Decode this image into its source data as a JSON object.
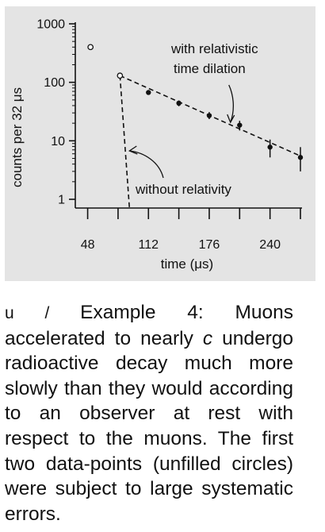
{
  "chart_data": {
    "type": "scatter",
    "xlabel": "time (μs)",
    "ylabel": "counts per 32 μs",
    "x_ticks": [
      48,
      112,
      176,
      240
    ],
    "y_ticks": [
      1,
      10,
      100,
      1000
    ],
    "y_scale": "log",
    "xlim": [
      40,
      272
    ],
    "ylim": [
      0.6,
      1000
    ],
    "grid": false,
    "points_unfilled": [
      {
        "x": 51,
        "y": 400
      },
      {
        "x": 82,
        "y": 130
      }
    ],
    "points_filled": [
      {
        "x": 112,
        "y": 67,
        "err_low": 61,
        "err_high": 73
      },
      {
        "x": 144,
        "y": 44,
        "err_low": 39,
        "err_high": 49
      },
      {
        "x": 176,
        "y": 27,
        "err_low": 23.5,
        "err_high": 31
      },
      {
        "x": 208,
        "y": 18.5,
        "err_low": 15,
        "err_high": 22
      },
      {
        "x": 240,
        "y": 7.8,
        "err_low": 5.2,
        "err_high": 10.5
      },
      {
        "x": 272,
        "y": 5.2,
        "err_low": 3.0,
        "err_high": 7.8
      }
    ],
    "fit_relativistic": {
      "x": [
        82,
        272
      ],
      "y": [
        130,
        5.5
      ]
    },
    "fit_nonrelativistic": {
      "x": [
        82,
        92
      ],
      "y": [
        130,
        0.7
      ]
    },
    "annotations": [
      {
        "text": "with relativistic",
        "target_x": 200
      },
      {
        "text": "time dilation"
      },
      {
        "text": "without relativity",
        "target_x": 87
      }
    ]
  },
  "caption": {
    "tag": "u / ",
    "lead": "Example 4:  Muons accelerated to nearly ",
    "var": "c",
    "rest": " undergo radioactive decay much more slowly than they would according to an observer at rest with respect to the muons.  The first two data-points (unfilled circles) were subject to large systematic errors."
  }
}
